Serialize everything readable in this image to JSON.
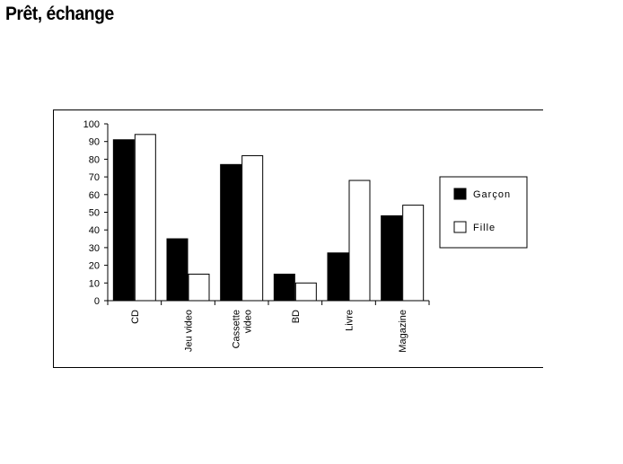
{
  "page": {
    "title": "Prêt, échange"
  },
  "chart_data": {
    "type": "bar",
    "title": "",
    "xlabel": "",
    "ylabel": "",
    "ylim": [
      0,
      100
    ],
    "yticks": [
      0,
      10,
      20,
      30,
      40,
      50,
      60,
      70,
      80,
      90,
      100
    ],
    "categories": [
      "CD",
      "Jeu video",
      "Cassette video",
      "BD",
      "Livre",
      "Magazine"
    ],
    "category_label_lines": [
      [
        "CD"
      ],
      [
        "Jeu video"
      ],
      [
        "Cassette",
        "video"
      ],
      [
        "BD"
      ],
      [
        "Livre"
      ],
      [
        "Magazine"
      ]
    ],
    "series": [
      {
        "name": "Garçon",
        "color": "#000000",
        "values": [
          91,
          35,
          77,
          15,
          27,
          48
        ]
      },
      {
        "name": "Fille",
        "color": "#ffffff",
        "values": [
          94,
          15,
          82,
          10,
          68,
          54
        ]
      }
    ],
    "legend_position": "right",
    "grid": false
  }
}
